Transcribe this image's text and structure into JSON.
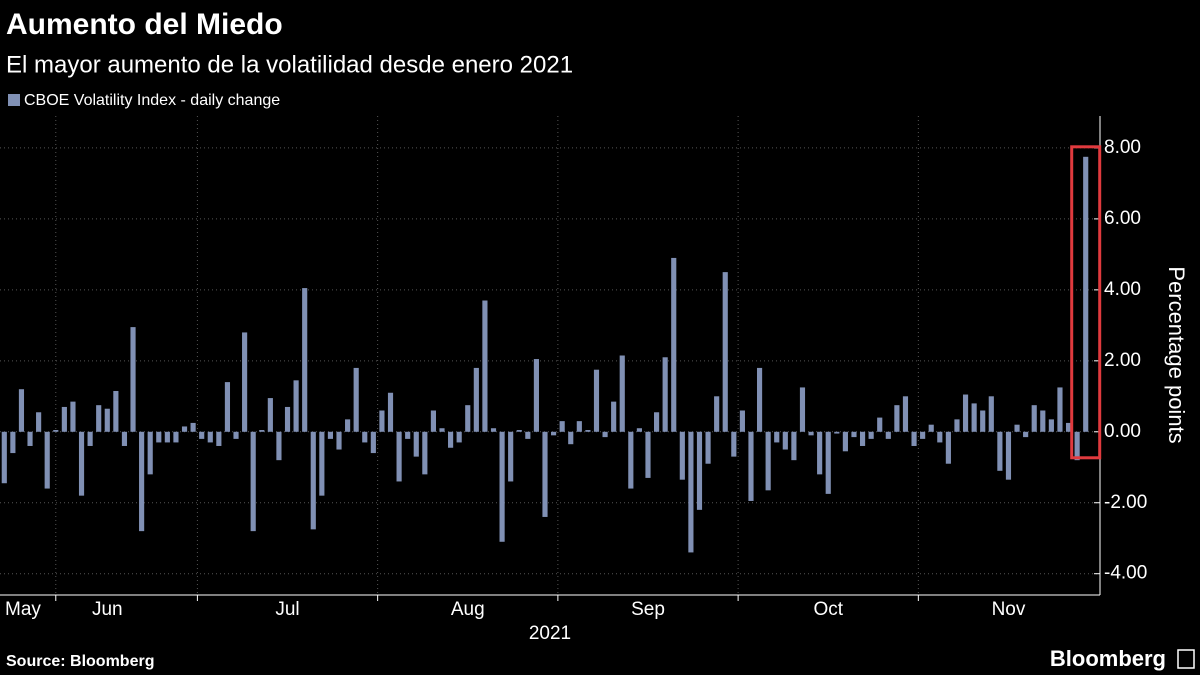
{
  "chart_data": {
    "type": "bar",
    "title": "Aumento del Miedo",
    "subtitle": "El mayor aumento de la volatilidad desde enero 2021",
    "xlabel": "2021",
    "ylabel": "Percentage points",
    "source": "Source:  Bloomberg",
    "brand": "Bloomberg",
    "categories": [
      "May",
      null,
      null,
      null,
      null,
      null,
      null,
      null,
      null,
      null,
      null,
      null,
      "Jun",
      null,
      null,
      null,
      null,
      null,
      null,
      null,
      null,
      null,
      null,
      null,
      null,
      null,
      null,
      null,
      null,
      null,
      null,
      null,
      null,
      "Jul",
      null,
      null,
      null,
      null,
      null,
      null,
      null,
      null,
      null,
      null,
      null,
      null,
      null,
      null,
      null,
      null,
      null,
      null,
      null,
      null,
      "Aug",
      null,
      null,
      null,
      null,
      null,
      null,
      null,
      null,
      null,
      null,
      null,
      null,
      null,
      null,
      null,
      null,
      null,
      null,
      null,
      null,
      "Sep",
      null,
      null,
      null,
      null,
      null,
      null,
      null,
      null,
      null,
      null,
      null,
      null,
      null,
      null,
      null,
      null,
      null,
      null,
      null,
      null,
      "Oct",
      null,
      null,
      null,
      null,
      null,
      null,
      null,
      null,
      null,
      null,
      null,
      null,
      null,
      null,
      null,
      null,
      null,
      null,
      null,
      null,
      "Nov",
      null,
      null,
      null,
      null,
      null,
      null,
      null,
      null,
      null
    ],
    "series": [
      {
        "name": "CBOE Volatility Index - daily change",
        "color": "#8090b4",
        "values": [
          -1.45,
          -0.6,
          1.2,
          -0.4,
          0.55,
          -1.6,
          0.05,
          0.7,
          0.85,
          -1.8,
          -0.4,
          0.75,
          0.65,
          1.15,
          -0.4,
          2.95,
          -2.8,
          -1.2,
          -0.3,
          -0.3,
          -0.3,
          0.15,
          0.25,
          -0.2,
          -0.3,
          -0.4,
          1.4,
          -0.2,
          2.8,
          -2.8,
          0.05,
          0.95,
          -0.8,
          0.7,
          1.45,
          4.05,
          -2.75,
          -1.8,
          -0.2,
          -0.5,
          0.35,
          1.8,
          -0.3,
          -0.6,
          0.6,
          1.1,
          -1.4,
          -0.2,
          -0.7,
          -1.2,
          0.6,
          0.1,
          -0.45,
          -0.3,
          0.75,
          1.8,
          3.7,
          0.1,
          -3.1,
          -1.4,
          0.05,
          -0.2,
          2.05,
          -2.4,
          -0.1,
          0.3,
          -0.35,
          0.3,
          0.05,
          1.75,
          -0.15,
          0.85,
          2.15,
          -1.6,
          0.1,
          -1.3,
          0.55,
          2.1,
          4.9,
          -1.35,
          -3.4,
          -2.2,
          -0.9,
          1.0,
          4.5,
          -0.7,
          0.6,
          -1.95,
          1.8,
          -1.65,
          -0.3,
          -0.5,
          -0.8,
          1.25,
          -0.1,
          -1.2,
          -1.75,
          -0.05,
          -0.55,
          -0.15,
          -0.4,
          -0.2,
          0.4,
          -0.2,
          0.75,
          1.0,
          -0.4,
          -0.2,
          0.2,
          -0.3,
          -0.9,
          0.35,
          1.05,
          0.8,
          0.6,
          1.0,
          -1.1,
          -1.35,
          0.2,
          -0.15,
          0.75,
          0.6,
          0.35,
          1.25,
          0.25,
          -0.8,
          7.75
        ]
      }
    ],
    "ylim": [
      -4.6,
      8.9
    ],
    "yticks": [
      {
        "value": -4,
        "label": "-4.00"
      },
      {
        "value": -2,
        "label": "-2.00"
      },
      {
        "value": 0,
        "label": "0.00"
      },
      {
        "value": 2,
        "label": "2.00"
      },
      {
        "value": 4,
        "label": "4.00"
      },
      {
        "value": 6,
        "label": "6.00"
      },
      {
        "value": 8,
        "label": "8.00"
      }
    ],
    "grid": true,
    "highlight_color": "#e03a3e"
  }
}
